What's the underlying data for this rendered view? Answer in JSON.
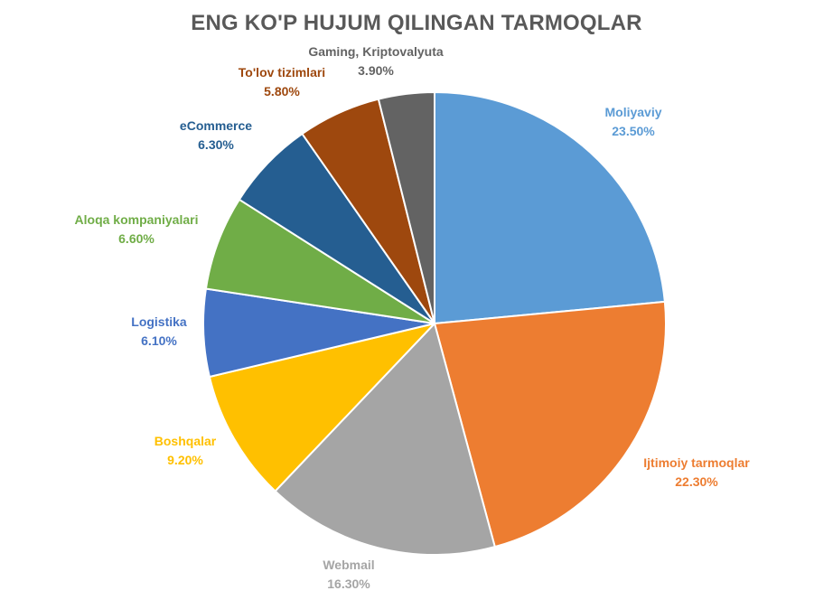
{
  "chart_data": {
    "type": "pie",
    "title": "ENG KO'P HUJUM QILINGAN TARMOQLAR",
    "start_angle": 0,
    "direction": "clockwise",
    "slices": [
      {
        "name": "Moliyaviy",
        "value": 23.5,
        "label": "23.50%",
        "color": "#5B9BD5"
      },
      {
        "name": "Ijtimoiy tarmoqlar",
        "value": 22.3,
        "label": "22.30%",
        "color": "#ED7D31"
      },
      {
        "name": "Webmail",
        "value": 16.3,
        "label": "16.30%",
        "color": "#A5A5A5"
      },
      {
        "name": "Boshqalar",
        "value": 9.2,
        "label": "9.20%",
        "color": "#FFC000"
      },
      {
        "name": "Logistika",
        "value": 6.1,
        "label": "6.10%",
        "color": "#4472C4"
      },
      {
        "name": "Aloqa kompaniyalari",
        "value": 6.6,
        "label": "6.60%",
        "color": "#70AD47"
      },
      {
        "name": "eCommerce",
        "value": 6.3,
        "label": "6.30%",
        "color": "#255E91"
      },
      {
        "name": "To'lov tizimlari",
        "value": 5.8,
        "label": "5.80%",
        "color": "#9E480E"
      },
      {
        "name": "Gaming, Kriptovalyuta",
        "value": 3.9,
        "label": "3.90%",
        "color": "#636363"
      }
    ]
  }
}
